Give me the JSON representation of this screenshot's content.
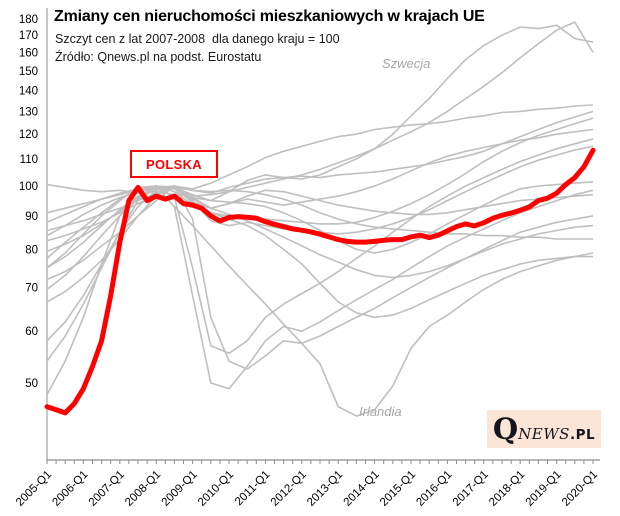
{
  "header": {
    "title": "Zmiany cen nieruchomości mieszkaniowych w krajach UE",
    "subtitle": "Szczyt cen z lat 2007-2008  dla danego kraju = 100",
    "source": "Źródło: Qnews.pl na podst. Eurostatu"
  },
  "annotations": {
    "poland_label": "POLSKA",
    "sweden_label": "Szwecja",
    "ireland_label": "Irlandia"
  },
  "logo": {
    "q": "Q",
    "news": "NEWS",
    "pl": ".PL"
  },
  "colors": {
    "accent_red": "#ff0000",
    "line_gray": "#bfbfbf",
    "axis_gray": "#8c8c8c",
    "label_gray": "#a6a6a6",
    "logo_bg": "#fbe5d6",
    "logo_text": "#14141e",
    "text_black": "#000000"
  },
  "chart_data": {
    "type": "line",
    "title": "Zmiany cen nieruchomości mieszkaniowych w krajach UE",
    "note": "Szczyt cen z lat 2007-2008 dla danego kraju = 100",
    "x_axis": {
      "labels": [
        "2005-Q1",
        "2006-Q1",
        "2007-Q1",
        "2008-Q1",
        "2009-Q1",
        "2010-Q1",
        "2011-Q1",
        "2012-Q1",
        "2013-Q1",
        "2014-Q1",
        "2015-Q1",
        "2016-Q1",
        "2017-Q1",
        "2018-Q1",
        "2019-Q1",
        "2020-Q1"
      ],
      "label_every_quarters": 4,
      "minor_tick_every_quarters": 1,
      "total_quarters": 61
    },
    "y_axis": {
      "scale": "log",
      "ticks": [
        50,
        60,
        70,
        80,
        90,
        100,
        110,
        120,
        130,
        140,
        150,
        160,
        170,
        180
      ]
    },
    "grid": false,
    "legend": false,
    "highlight_series": {
      "name": "Polska",
      "x_step_quarters": 1,
      "values": [
        46,
        45.5,
        45,
        46.5,
        49,
        53,
        58,
        68,
        82,
        95,
        99.5,
        95,
        96.5,
        95.5,
        96.5,
        94,
        93.5,
        92.5,
        90,
        88.4,
        89.5,
        89.8,
        89.6,
        89.3,
        88.2,
        87.4,
        86.7,
        86,
        85.6,
        85.1,
        84.4,
        83.6,
        82.8,
        82.3,
        82.1,
        82.1,
        82.3,
        82.6,
        82.8,
        82.8,
        83.6,
        84.1,
        83.4,
        84.1,
        85.4,
        86.7,
        87.5,
        86.9,
        87.9,
        89.3,
        90.2,
        90.9,
        91.8,
        92.9,
        95,
        95.8,
        97.5,
        100.5,
        103,
        107,
        113.4
      ]
    },
    "background_series": [
      {
        "name": "szwecja",
        "label": "Szwecja",
        "x_step_quarters": 2,
        "values": [
          72,
          74,
          77,
          81,
          85,
          90,
          95,
          100,
          96,
          95,
          98,
          102,
          104,
          103,
          102.5,
          104,
          107,
          110,
          114,
          120,
          128,
          136,
          146,
          156,
          164,
          170,
          175,
          174,
          176,
          168,
          166
        ]
      },
      {
        "name": "eu-2",
        "x_step_quarters": 2,
        "values": [
          100.5,
          99.5,
          98.5,
          98,
          98.5,
          97.5,
          98,
          97,
          96.5,
          97,
          98,
          99.5,
          101,
          102.5,
          104,
          106,
          108.5,
          111,
          114,
          117.5,
          121,
          125,
          130,
          136,
          142,
          149,
          157,
          165,
          173,
          178,
          160
        ]
      },
      {
        "name": "eu-3",
        "x_step_quarters": 2,
        "values": [
          85.5,
          87,
          88.5,
          90.5,
          92.5,
          95,
          97.5,
          100,
          99,
          101,
          104,
          107,
          110.5,
          113,
          115,
          117,
          119,
          120,
          122,
          123,
          124,
          124.5,
          125.5,
          127,
          128,
          129.5,
          130,
          131,
          131.5,
          132.5,
          133
        ]
      },
      {
        "name": "eu-4",
        "x_step_quarters": 2,
        "values": [
          82.5,
          84,
          86,
          88,
          91,
          94,
          97,
          100,
          98.5,
          97.5,
          99.5,
          101,
          102.5,
          103,
          103.5,
          103,
          104,
          104.5,
          105,
          106,
          107,
          108,
          109.5,
          111,
          113,
          116,
          119,
          122,
          125,
          127.5,
          130
        ]
      },
      {
        "name": "eu-5",
        "x_step_quarters": 2,
        "values": [
          79.5,
          81.5,
          84,
          87.5,
          91.5,
          96,
          99,
          100,
          94,
          91,
          90,
          89.5,
          89,
          88.5,
          88,
          87.5,
          87.5,
          88,
          89.5,
          91.5,
          94,
          97,
          100.5,
          104.5,
          109,
          113,
          116.5,
          119.5,
          122,
          124.5,
          127
        ]
      },
      {
        "name": "eu-6",
        "x_step_quarters": 2,
        "values": [
          75,
          78,
          82,
          87,
          92,
          96.5,
          100,
          99,
          94.5,
          92.5,
          94,
          95.5,
          94.5,
          93.5,
          94.5,
          95.5,
          96.5,
          98,
          100,
          102.5,
          105.5,
          108.5,
          111,
          113,
          114.5,
          116,
          117.5,
          118.5,
          120,
          121,
          122
        ]
      },
      {
        "name": "eu-7",
        "x_step_quarters": 2,
        "values": [
          54,
          59,
          66,
          75,
          85,
          95,
          100,
          96,
          75,
          57,
          55.5,
          58,
          63,
          66,
          68.5,
          71,
          74,
          77.5,
          81,
          85,
          89,
          93,
          96.5,
          100,
          103,
          106,
          109,
          111.5,
          114,
          116,
          118
        ]
      },
      {
        "name": "eu-8",
        "x_step_quarters": 2,
        "values": [
          66.5,
          69,
          72.5,
          77,
          83,
          90,
          96.5,
          100,
          95,
          88.5,
          87,
          88,
          87,
          86,
          85.5,
          85,
          84.5,
          85,
          86,
          87.5,
          89.5,
          92,
          95,
          98,
          101,
          104,
          107,
          109.5,
          111.5,
          113.5,
          115
        ]
      },
      {
        "name": "eu-9",
        "x_step_quarters": 2,
        "values": [
          91,
          92.5,
          94,
          95.5,
          97,
          98.5,
          100,
          99.5,
          97,
          95,
          94.5,
          94,
          93,
          91,
          88.5,
          85.5,
          82.5,
          80,
          79,
          80,
          82,
          84.5,
          87.5,
          90.5,
          93.5,
          96.5,
          99,
          100,
          100.5,
          101,
          101.5
        ]
      },
      {
        "name": "eu-10",
        "x_step_quarters": 2,
        "values": [
          48,
          54,
          63,
          76,
          90,
          99,
          100,
          93,
          68,
          50,
          49,
          53,
          58,
          61,
          60,
          62,
          64.5,
          67,
          69.5,
          72,
          75,
          78,
          81,
          83.5,
          86,
          88.5,
          91,
          93,
          95,
          97,
          98.5
        ]
      },
      {
        "name": "eu-11",
        "x_step_quarters": 2,
        "values": [
          84,
          87,
          90.5,
          93.5,
          96,
          98,
          99.5,
          100,
          95.5,
          92.5,
          94,
          96.5,
          98.5,
          98,
          96.5,
          95,
          93.5,
          92.5,
          91.5,
          91,
          90.5,
          90.5,
          91,
          92,
          93,
          94,
          95,
          95.5,
          96,
          96.5,
          97
        ]
      },
      {
        "name": "eu-12",
        "x_step_quarters": 2,
        "values": [
          58,
          62,
          68,
          76,
          85,
          93,
          98.5,
          100,
          89,
          63,
          54,
          52.5,
          55,
          58,
          57.5,
          59,
          61,
          63,
          65,
          67.5,
          70,
          72.5,
          75,
          77.5,
          80,
          82.5,
          85,
          86.5,
          88,
          89,
          90
        ]
      },
      {
        "name": "eu-13",
        "x_step_quarters": 2,
        "values": [
          69.5,
          73,
          78,
          84,
          90,
          95.5,
          99,
          100,
          96,
          92.5,
          90.5,
          88.5,
          86,
          83.5,
          81,
          78.5,
          76.5,
          74.5,
          73,
          72.5,
          73,
          74,
          75.5,
          77.5,
          79.5,
          81.5,
          83,
          84.5,
          85.5,
          86.5,
          87
        ]
      },
      {
        "name": "eu-14",
        "x_step_quarters": 2,
        "values": [
          88,
          90.5,
          93,
          95.5,
          97.5,
          99,
          100,
          99.5,
          98.5,
          98,
          98.5,
          98,
          97,
          95.5,
          93.5,
          91,
          89,
          87.5,
          86.5,
          86,
          85.5,
          85,
          84.5,
          84.5,
          84,
          84,
          83.5,
          83.5,
          83,
          83,
          83
        ]
      },
      {
        "name": "eu-15",
        "x_step_quarters": 2,
        "values": [
          77.5,
          82,
          86.5,
          91,
          95.5,
          98.5,
          100,
          98,
          93.5,
          91,
          89,
          87,
          84,
          80,
          76,
          71,
          66.5,
          64,
          63,
          63.5,
          65,
          67,
          69,
          71,
          73,
          74.5,
          76,
          77,
          77.5,
          78,
          78
        ]
      },
      {
        "name": "irlandia",
        "label": "Irlandia",
        "x_step_quarters": 2,
        "values": [
          75,
          79,
          84.5,
          90,
          95,
          99.5,
          100,
          93,
          87,
          81,
          75.5,
          70.5,
          66,
          61.5,
          57.5,
          53.5,
          46,
          44.5,
          45.5,
          49.5,
          56.5,
          61,
          63.5,
          66.5,
          69.5,
          72,
          74,
          75.5,
          77,
          78,
          79
        ]
      }
    ]
  }
}
